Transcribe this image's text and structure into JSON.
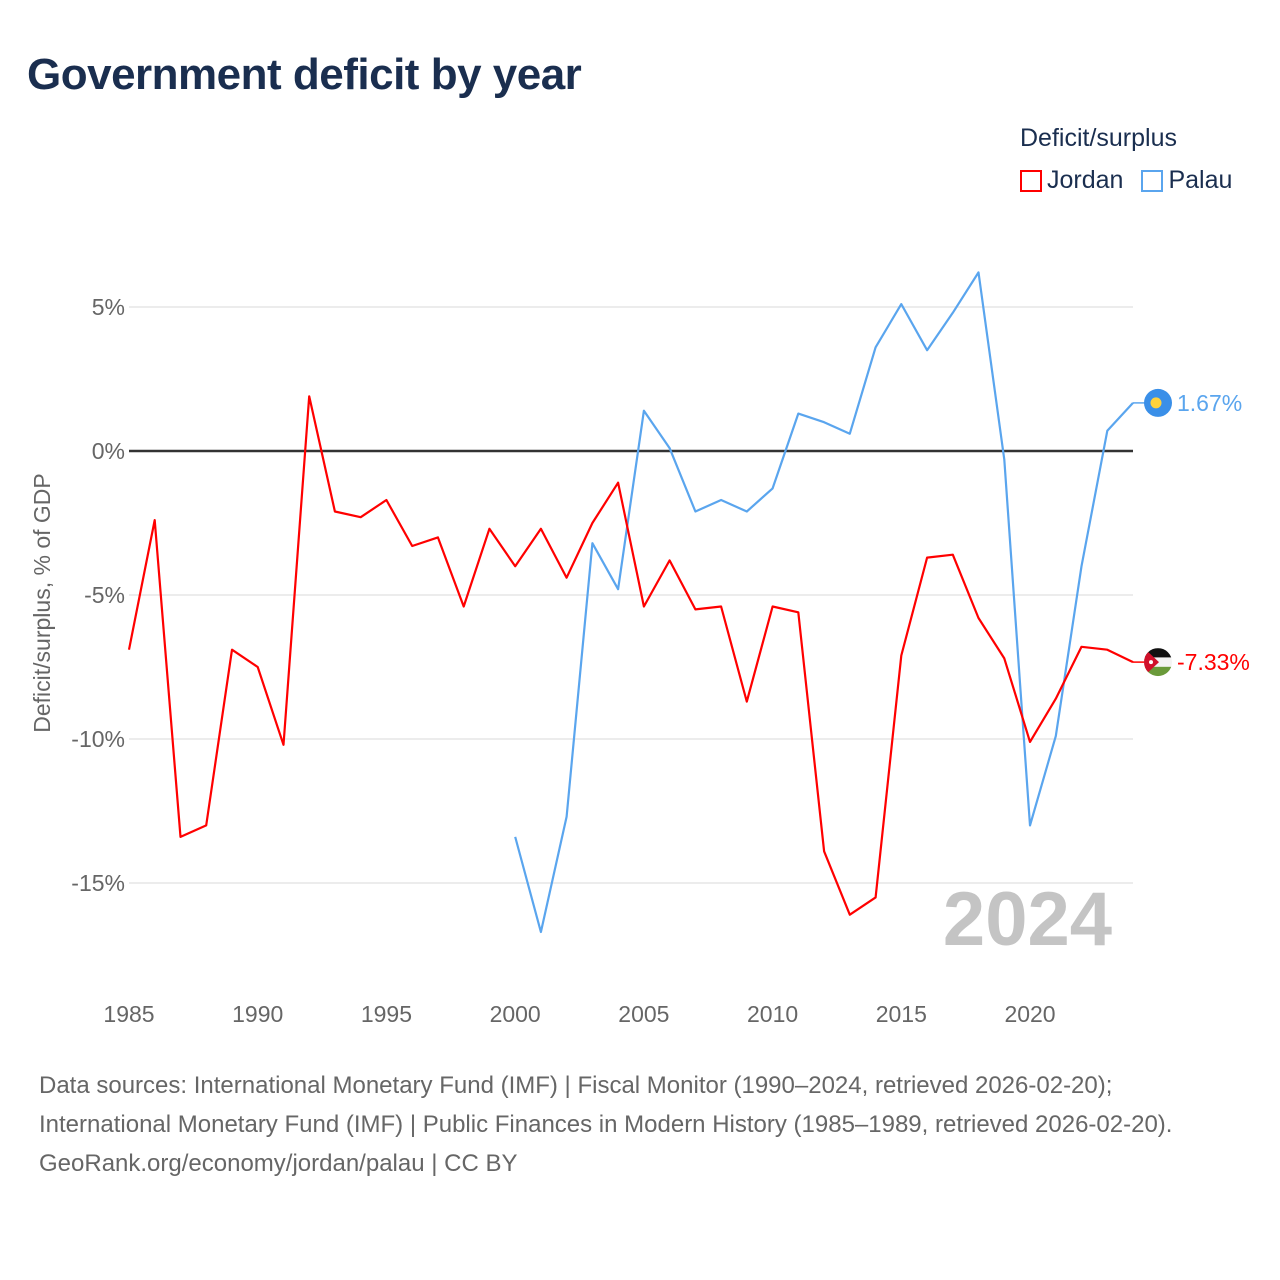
{
  "title": "Government deficit by year",
  "legend": {
    "title": "Deficit/surplus",
    "items": [
      {
        "label": "Jordan",
        "color": "#ff0000"
      },
      {
        "label": "Palau",
        "color": "#5aa5ee"
      }
    ]
  },
  "footer": {
    "sources": "Data sources: International Monetary Fund (IMF) | Fiscal Monitor (1990–2024, retrieved 2026-02-20); International Monetary Fund (IMF) | Public Finances in Modern History (1985–1989, retrieved 2026-02-20).",
    "credit": "GeoRank.org/economy/jordan/palau | CC BY"
  },
  "chart_data": {
    "type": "line",
    "title": "Government deficit by year",
    "ylabel": "Deficit/surplus, % of GDP",
    "xlabel": "",
    "year_watermark": "2024",
    "xlim": [
      1985,
      2024
    ],
    "ylim": [
      -18,
      7.5
    ],
    "x_ticks": [
      1985,
      1990,
      1995,
      2000,
      2005,
      2010,
      2015,
      2020
    ],
    "x_tick_labels": [
      "1985",
      "1990",
      "1995",
      "2000",
      "2005",
      "2010",
      "2015",
      "2020"
    ],
    "y_ticks": [
      5,
      0,
      -5,
      -10,
      -15
    ],
    "y_tick_labels": [
      "5%",
      "0%",
      "-5%",
      "-10%",
      "-15%"
    ],
    "grid": true,
    "legend_position": "top-right",
    "series": [
      {
        "name": "Jordan",
        "color": "#ff0000",
        "end_label": "-7.33%",
        "x": [
          1985,
          1986,
          1987,
          1988,
          1989,
          1990,
          1991,
          1992,
          1993,
          1994,
          1995,
          1996,
          1997,
          1998,
          1999,
          2000,
          2001,
          2002,
          2003,
          2004,
          2005,
          2006,
          2007,
          2008,
          2009,
          2010,
          2011,
          2012,
          2013,
          2014,
          2015,
          2016,
          2017,
          2018,
          2019,
          2020,
          2021,
          2022,
          2023,
          2024
        ],
        "values": [
          -6.9,
          -2.4,
          -13.4,
          -13.0,
          -6.9,
          -7.5,
          -10.2,
          1.9,
          -2.1,
          -2.3,
          -1.7,
          -3.3,
          -3.0,
          -5.4,
          -2.7,
          -4.0,
          -2.7,
          -4.4,
          -2.5,
          -1.1,
          -5.4,
          -3.8,
          -5.5,
          -5.4,
          -8.7,
          -5.4,
          -5.6,
          -13.9,
          -16.1,
          -15.5,
          -7.1,
          -3.7,
          -3.6,
          -5.8,
          -7.2,
          -10.1,
          -8.6,
          -6.8,
          -6.9,
          -7.33
        ]
      },
      {
        "name": "Palau",
        "color": "#5aa5ee",
        "end_label": "1.67%",
        "x": [
          2000,
          2001,
          2002,
          2003,
          2004,
          2005,
          2006,
          2007,
          2008,
          2009,
          2010,
          2011,
          2012,
          2013,
          2014,
          2015,
          2016,
          2017,
          2018,
          2019,
          2020,
          2021,
          2022,
          2023,
          2024
        ],
        "values": [
          -13.4,
          -16.7,
          -12.7,
          -3.2,
          -4.8,
          1.4,
          0.1,
          -2.1,
          -1.7,
          -2.1,
          -1.3,
          1.3,
          1.0,
          0.6,
          3.6,
          5.1,
          3.5,
          4.8,
          6.2,
          -0.3,
          -13.0,
          -9.9,
          -4.0,
          0.7,
          1.67
        ]
      }
    ]
  }
}
